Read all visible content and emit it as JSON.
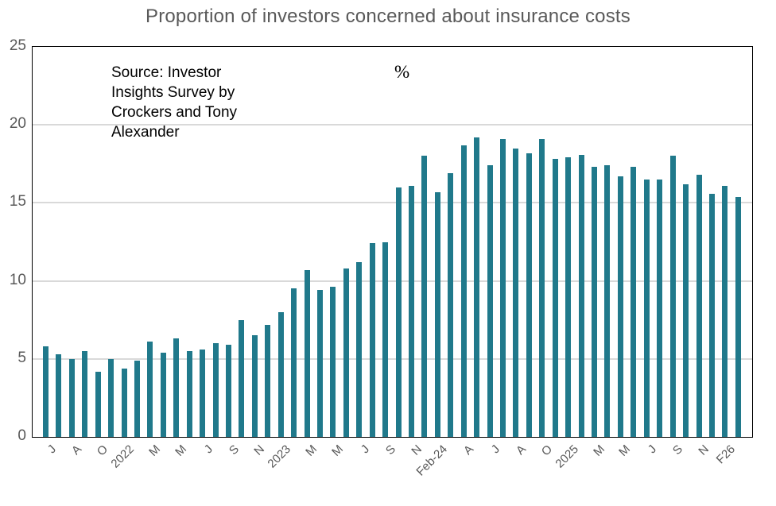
{
  "title": "Proportion of investors concerned about insurance costs",
  "unit_label": "%",
  "source_note": {
    "lines": [
      "Source: Investor",
      "Insights Survey by",
      "Crockers and Tony",
      "Alexander"
    ]
  },
  "colors": {
    "bar": "#20798b",
    "axis_text": "#595959",
    "title_text": "#595959",
    "note_text": "#000000",
    "gridline": "#d9d9d9",
    "axis_line": "#000000"
  },
  "chart_data": {
    "type": "bar",
    "title": "Proportion of investors concerned about insurance costs",
    "xlabel": "",
    "ylabel": "%",
    "ylim": [
      0,
      25
    ],
    "y_ticks": [
      0,
      5,
      10,
      15,
      20,
      25
    ],
    "grid": "horizontal",
    "legend": "none",
    "annotation": "Source: Investor Insights Survey by Crockers and Tony Alexander",
    "tick_every_n_bars": 2,
    "x_tick_labels": [
      "J",
      "A",
      "O",
      "2022",
      "M",
      "M",
      "J",
      "S",
      "N",
      "2023",
      "M",
      "M",
      "J",
      "S",
      "N",
      "Feb-24",
      "A",
      "J",
      "A",
      "O",
      "2025",
      "M",
      "M",
      "J",
      "S",
      "N",
      "F26"
    ],
    "values": [
      5.8,
      5.3,
      5.0,
      5.5,
      4.2,
      5.0,
      4.4,
      4.9,
      6.1,
      5.4,
      6.3,
      5.5,
      5.6,
      6.0,
      5.9,
      7.5,
      6.5,
      7.2,
      8.0,
      9.5,
      10.7,
      9.4,
      9.6,
      10.8,
      11.2,
      12.4,
      12.5,
      16.0,
      16.1,
      18.0,
      15.7,
      16.9,
      18.7,
      19.2,
      17.4,
      19.1,
      18.5,
      18.2,
      19.1,
      17.8,
      17.9,
      18.1,
      17.3,
      17.4,
      16.7,
      17.3,
      16.5,
      16.5,
      18.0,
      16.2,
      16.8,
      15.6,
      16.1,
      15.4
    ]
  }
}
